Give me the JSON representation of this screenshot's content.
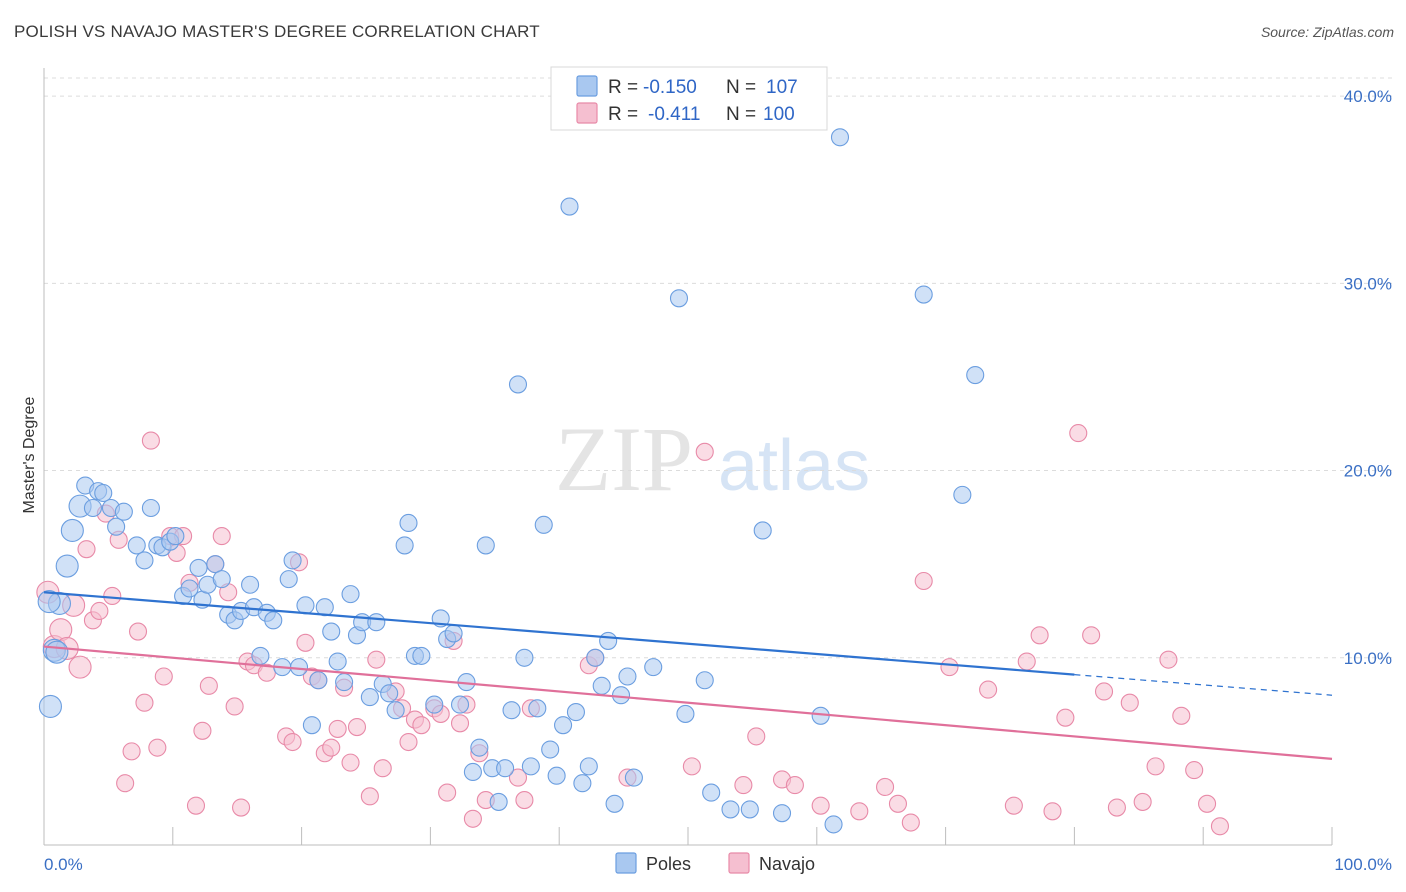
{
  "header": {
    "title": "POLISH VS NAVAJO MASTER'S DEGREE CORRELATION CHART",
    "source": "Source: ZipAtlas.com"
  },
  "legend": {
    "poles": {
      "r_label": "R =",
      "r_value": "-0.150",
      "n_label": "N =",
      "n_value": "107"
    },
    "navajo": {
      "r_label": "R =",
      "r_value": "-0.411",
      "n_label": "N =",
      "n_value": "100"
    }
  },
  "bottom_legend": {
    "poles": "Poles",
    "navajo": "Navajo"
  },
  "watermark": {
    "zip": "ZIP",
    "atlas": "atlas"
  },
  "colors": {
    "poles_fill": "#a9c8f0",
    "poles_stroke": "#6b9ee0",
    "poles_line": "#2f73d0",
    "navajo_fill": "#f5bfd0",
    "navajo_stroke": "#e88aa8",
    "navajo_line": "#e0709a"
  },
  "chart_data": {
    "type": "scatter",
    "title": "POLISH VS NAVAJO MASTER'S DEGREE CORRELATION CHART",
    "xlabel": "",
    "ylabel": "Master's Degree",
    "xlim": [
      0,
      100
    ],
    "ylim": [
      0,
      41.5
    ],
    "x_tick_labels": [
      "0.0%",
      "100.0%"
    ],
    "y_ticks": [
      10,
      20,
      30,
      40
    ],
    "y_tick_labels": [
      "10.0%",
      "20.0%",
      "30.0%",
      "40.0%"
    ],
    "grid": true,
    "legend_position": "top-center",
    "series": [
      {
        "name": "Poles",
        "r": -0.15,
        "n": 107,
        "trend": {
          "x": [
            0,
            80
          ],
          "y": [
            13.5,
            9.1
          ],
          "dashed_to": [
            100,
            8.0
          ]
        },
        "points": [
          [
            0.5,
            7.4
          ],
          [
            0.8,
            10.4
          ],
          [
            1.2,
            12.9
          ],
          [
            1.8,
            14.9
          ],
          [
            2.2,
            16.8
          ],
          [
            2.8,
            18.1
          ],
          [
            3.2,
            19.2
          ],
          [
            3.8,
            18.0
          ],
          [
            4.2,
            18.9
          ],
          [
            4.6,
            18.8
          ],
          [
            5.2,
            18.0
          ],
          [
            5.6,
            17.0
          ],
          [
            6.2,
            17.8
          ],
          [
            7.2,
            16.0
          ],
          [
            7.8,
            15.2
          ],
          [
            8.3,
            18.0
          ],
          [
            8.8,
            16.0
          ],
          [
            9.2,
            15.9
          ],
          [
            9.8,
            16.2
          ],
          [
            10.2,
            16.5
          ],
          [
            10.8,
            13.3
          ],
          [
            11.3,
            13.7
          ],
          [
            12.0,
            14.8
          ],
          [
            12.3,
            13.1
          ],
          [
            12.7,
            13.9
          ],
          [
            13.3,
            15.0
          ],
          [
            13.8,
            14.2
          ],
          [
            14.3,
            12.3
          ],
          [
            14.8,
            12.0
          ],
          [
            15.3,
            12.5
          ],
          [
            16.0,
            13.9
          ],
          [
            16.3,
            12.7
          ],
          [
            16.8,
            10.1
          ],
          [
            17.3,
            12.4
          ],
          [
            17.8,
            12.0
          ],
          [
            18.5,
            9.5
          ],
          [
            19.0,
            14.2
          ],
          [
            19.3,
            15.2
          ],
          [
            19.8,
            9.5
          ],
          [
            20.3,
            12.8
          ],
          [
            20.8,
            6.4
          ],
          [
            21.3,
            8.8
          ],
          [
            21.8,
            12.7
          ],
          [
            22.3,
            11.4
          ],
          [
            22.8,
            9.8
          ],
          [
            23.3,
            8.7
          ],
          [
            23.8,
            13.4
          ],
          [
            24.3,
            11.2
          ],
          [
            24.7,
            11.9
          ],
          [
            25.3,
            7.9
          ],
          [
            25.8,
            11.9
          ],
          [
            26.3,
            8.6
          ],
          [
            26.8,
            8.1
          ],
          [
            27.3,
            7.2
          ],
          [
            28.0,
            16.0
          ],
          [
            28.3,
            17.2
          ],
          [
            28.8,
            10.1
          ],
          [
            29.3,
            10.1
          ],
          [
            30.3,
            7.5
          ],
          [
            30.8,
            12.1
          ],
          [
            31.3,
            11.0
          ],
          [
            31.8,
            11.3
          ],
          [
            32.3,
            7.5
          ],
          [
            32.8,
            8.7
          ],
          [
            33.3,
            3.9
          ],
          [
            33.8,
            5.2
          ],
          [
            34.3,
            16.0
          ],
          [
            34.8,
            4.1
          ],
          [
            35.3,
            2.3
          ],
          [
            35.8,
            4.1
          ],
          [
            36.3,
            7.2
          ],
          [
            36.8,
            24.6
          ],
          [
            37.3,
            10.0
          ],
          [
            37.8,
            4.2
          ],
          [
            38.3,
            7.3
          ],
          [
            38.8,
            17.1
          ],
          [
            39.3,
            5.1
          ],
          [
            39.8,
            3.7
          ],
          [
            40.3,
            6.4
          ],
          [
            40.8,
            34.1
          ],
          [
            41.3,
            7.1
          ],
          [
            41.8,
            3.3
          ],
          [
            42.3,
            4.2
          ],
          [
            42.8,
            10.0
          ],
          [
            43.3,
            8.5
          ],
          [
            43.8,
            10.9
          ],
          [
            44.3,
            2.2
          ],
          [
            44.8,
            8.0
          ],
          [
            45.3,
            9.0
          ],
          [
            45.8,
            3.6
          ],
          [
            47.3,
            9.5
          ],
          [
            49.3,
            29.2
          ],
          [
            49.8,
            7.0
          ],
          [
            51.3,
            8.8
          ],
          [
            51.8,
            2.8
          ],
          [
            53.3,
            1.9
          ],
          [
            54.8,
            1.9
          ],
          [
            55.8,
            16.8
          ],
          [
            57.3,
            1.7
          ],
          [
            60.3,
            6.9
          ],
          [
            61.3,
            1.1
          ],
          [
            61.8,
            37.8
          ],
          [
            68.3,
            29.4
          ],
          [
            71.3,
            18.7
          ],
          [
            72.3,
            25.1
          ],
          [
            0.4,
            13.0
          ],
          [
            1.0,
            10.3
          ]
        ]
      },
      {
        "name": "Navajo",
        "r": -0.411,
        "n": 100,
        "trend": {
          "x": [
            0,
            100
          ],
          "y": [
            10.6,
            4.6
          ]
        },
        "points": [
          [
            0.3,
            13.5
          ],
          [
            0.8,
            10.6
          ],
          [
            1.3,
            11.5
          ],
          [
            1.8,
            10.5
          ],
          [
            2.3,
            12.8
          ],
          [
            2.8,
            9.5
          ],
          [
            3.3,
            15.8
          ],
          [
            3.8,
            12.0
          ],
          [
            4.3,
            12.5
          ],
          [
            4.8,
            17.7
          ],
          [
            5.3,
            13.3
          ],
          [
            5.8,
            16.3
          ],
          [
            6.3,
            3.3
          ],
          [
            6.8,
            5.0
          ],
          [
            7.3,
            11.4
          ],
          [
            7.8,
            7.6
          ],
          [
            8.3,
            21.6
          ],
          [
            8.8,
            5.2
          ],
          [
            9.3,
            9.0
          ],
          [
            9.8,
            16.5
          ],
          [
            10.3,
            15.6
          ],
          [
            10.8,
            16.5
          ],
          [
            11.3,
            14.0
          ],
          [
            11.8,
            2.1
          ],
          [
            12.3,
            6.1
          ],
          [
            12.8,
            8.5
          ],
          [
            13.3,
            15.0
          ],
          [
            13.8,
            16.5
          ],
          [
            14.3,
            13.5
          ],
          [
            14.8,
            7.4
          ],
          [
            15.3,
            2.0
          ],
          [
            15.8,
            9.8
          ],
          [
            16.3,
            9.6
          ],
          [
            17.3,
            9.2
          ],
          [
            18.8,
            5.8
          ],
          [
            19.3,
            5.5
          ],
          [
            19.8,
            15.1
          ],
          [
            20.3,
            10.8
          ],
          [
            20.8,
            9.0
          ],
          [
            21.3,
            8.8
          ],
          [
            21.8,
            4.9
          ],
          [
            22.3,
            5.2
          ],
          [
            22.8,
            6.2
          ],
          [
            23.3,
            8.4
          ],
          [
            23.8,
            4.4
          ],
          [
            24.3,
            6.3
          ],
          [
            25.3,
            2.6
          ],
          [
            25.8,
            9.9
          ],
          [
            26.3,
            4.1
          ],
          [
            27.3,
            8.2
          ],
          [
            27.8,
            7.3
          ],
          [
            28.3,
            5.5
          ],
          [
            28.8,
            6.7
          ],
          [
            29.3,
            6.4
          ],
          [
            30.3,
            7.3
          ],
          [
            30.8,
            7.0
          ],
          [
            31.3,
            2.8
          ],
          [
            31.8,
            10.9
          ],
          [
            32.3,
            6.5
          ],
          [
            32.8,
            7.5
          ],
          [
            33.3,
            1.4
          ],
          [
            33.8,
            4.9
          ],
          [
            34.3,
            2.4
          ],
          [
            36.8,
            3.6
          ],
          [
            37.3,
            2.4
          ],
          [
            37.8,
            7.3
          ],
          [
            42.3,
            9.6
          ],
          [
            42.8,
            10.0
          ],
          [
            45.3,
            3.6
          ],
          [
            50.3,
            4.2
          ],
          [
            51.3,
            21.0
          ],
          [
            54.3,
            3.2
          ],
          [
            55.3,
            5.8
          ],
          [
            57.3,
            3.5
          ],
          [
            58.3,
            3.2
          ],
          [
            60.3,
            2.1
          ],
          [
            63.3,
            1.8
          ],
          [
            65.3,
            3.1
          ],
          [
            66.3,
            2.2
          ],
          [
            67.3,
            1.2
          ],
          [
            68.3,
            14.1
          ],
          [
            70.3,
            9.5
          ],
          [
            73.3,
            8.3
          ],
          [
            75.3,
            2.1
          ],
          [
            76.3,
            9.8
          ],
          [
            77.3,
            11.2
          ],
          [
            78.3,
            1.8
          ],
          [
            79.3,
            6.8
          ],
          [
            80.3,
            22.0
          ],
          [
            81.3,
            11.2
          ],
          [
            82.3,
            8.2
          ],
          [
            83.3,
            2.0
          ],
          [
            84.3,
            7.6
          ],
          [
            85.3,
            2.3
          ],
          [
            86.3,
            4.2
          ],
          [
            87.3,
            9.9
          ],
          [
            88.3,
            6.9
          ],
          [
            89.3,
            4.0
          ],
          [
            90.3,
            2.2
          ],
          [
            91.3,
            1.0
          ]
        ]
      }
    ]
  }
}
